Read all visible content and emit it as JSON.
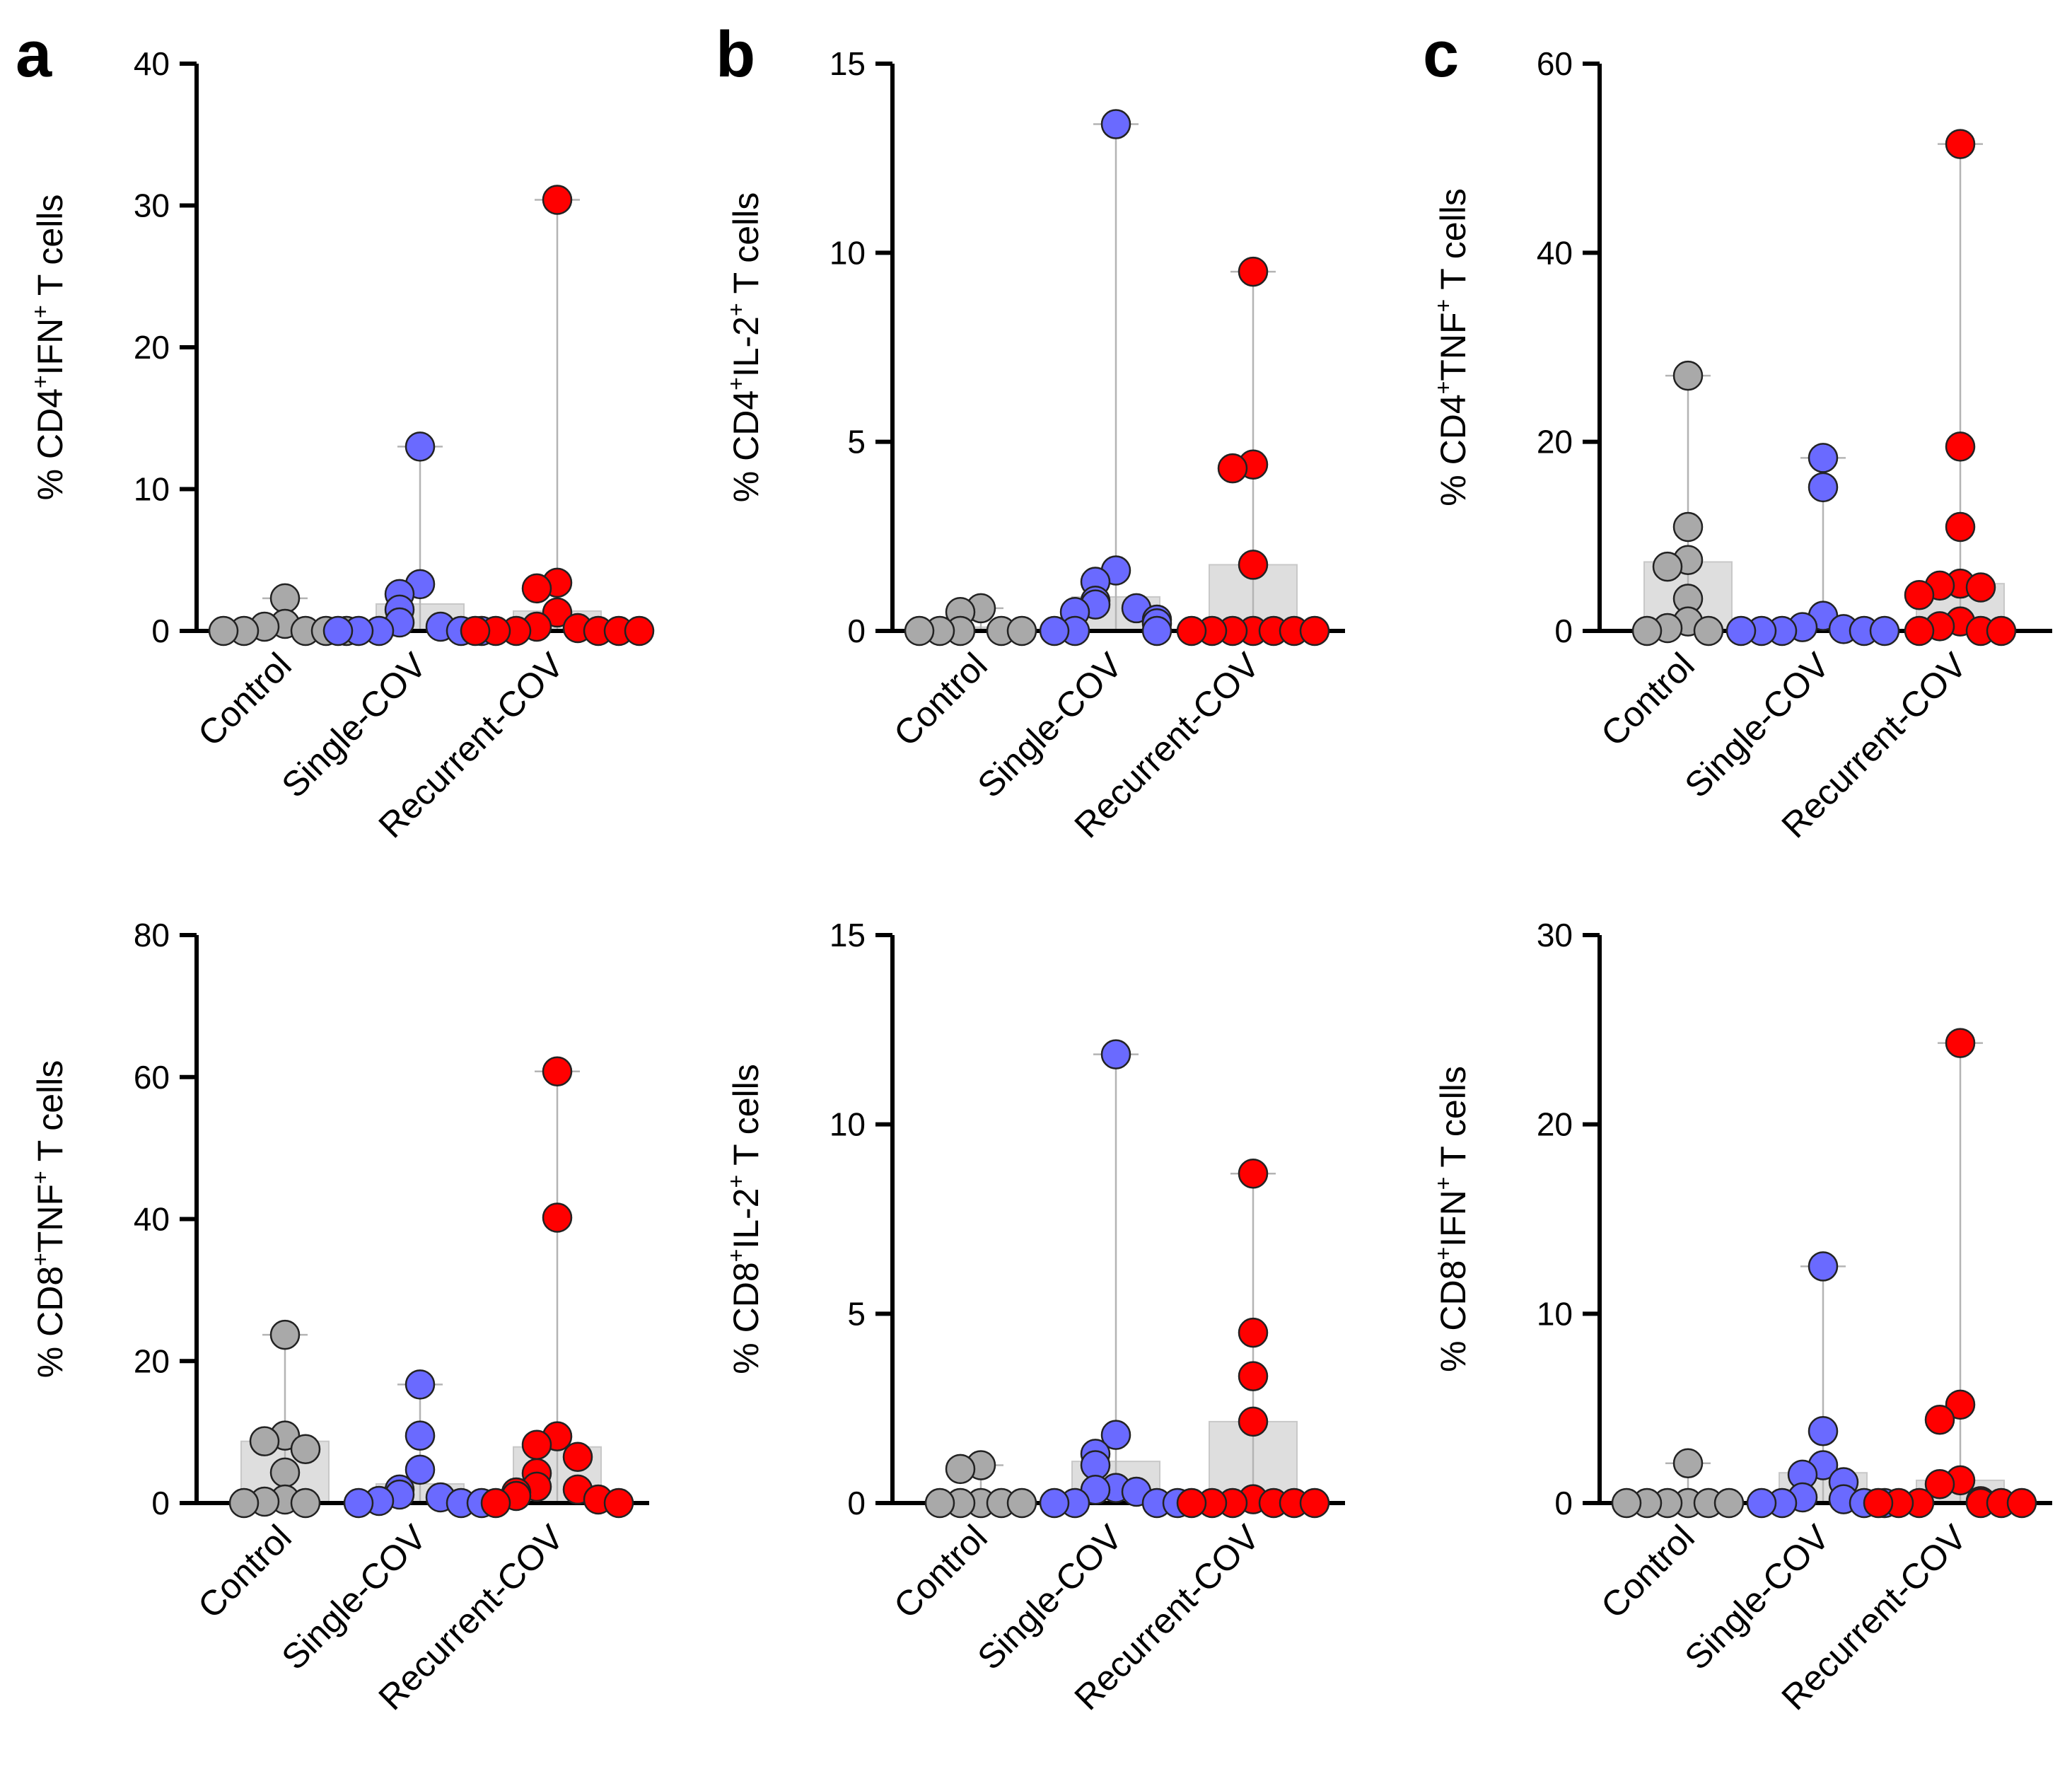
{
  "colors": {
    "control": "#a9a9a9",
    "single": "#6a6aff",
    "recurrent": "#ff0000",
    "bar_fill": "#dedede",
    "bar_stroke": "#c8c8c8",
    "whisker": "#b4b4b4",
    "axis": "#000000"
  },
  "chart_data": [
    {
      "type": "bar",
      "panel_letter": "a",
      "ylabel_parts": [
        "% CD4",
        "+",
        "IFN",
        "+",
        " T cells"
      ],
      "categories": [
        "Control",
        "Single-COV",
        "Recurrent-COV"
      ],
      "ylim": [
        0,
        40
      ],
      "yticks": [
        0,
        10,
        20,
        30,
        40
      ],
      "bar_values": [
        0.3,
        1.9,
        1.4
      ],
      "ranges": [
        [
          0,
          2.3
        ],
        [
          0,
          13.0
        ],
        [
          0,
          30.4
        ]
      ],
      "points": [
        [
          2.3,
          0.5,
          0.3,
          0,
          0,
          0,
          0,
          0
        ],
        [
          13.0,
          3.3,
          2.6,
          1.5,
          0.6,
          0.3,
          0,
          0,
          0,
          0,
          0
        ],
        [
          30.4,
          3.4,
          3.0,
          1.3,
          0.3,
          0.2,
          0,
          0,
          0,
          0,
          0,
          0
        ]
      ]
    },
    {
      "type": "bar",
      "panel_letter": "b",
      "ylabel_parts": [
        "% CD4",
        "+",
        "IL-2",
        "+",
        " T cells"
      ],
      "categories": [
        "Control",
        "Single-COV",
        "Recurrent-COV"
      ],
      "ylim": [
        0,
        15
      ],
      "yticks": [
        0,
        5,
        10,
        15
      ],
      "bar_values": [
        0.1,
        0.9,
        1.75
      ],
      "ranges": [
        [
          0,
          0.6
        ],
        [
          0,
          13.4
        ],
        [
          0,
          9.5
        ]
      ],
      "points": [
        [
          0.6,
          0.5,
          0,
          0,
          0,
          0,
          0
        ],
        [
          13.4,
          1.6,
          1.3,
          0.8,
          0.7,
          0.6,
          0.5,
          0.3,
          0.2,
          0,
          0,
          0
        ],
        [
          9.5,
          4.4,
          4.3,
          1.75,
          0,
          0,
          0,
          0,
          0,
          0,
          0
        ]
      ]
    },
    {
      "type": "bar",
      "panel_letter": "c",
      "ylabel_parts": [
        "% CD4",
        "+",
        "TNF",
        "+",
        " T cells"
      ],
      "categories": [
        "Control",
        "Single-COV",
        "Recurrent-COV"
      ],
      "ylim": [
        0,
        60
      ],
      "yticks": [
        0,
        20,
        40,
        60
      ],
      "bar_values": [
        7.3,
        0.2,
        5.0
      ],
      "ranges": [
        [
          0,
          27.0
        ],
        [
          0,
          18.3
        ],
        [
          0,
          51.5
        ]
      ],
      "points": [
        [
          27.0,
          11.0,
          7.5,
          6.8,
          3.4,
          1.0,
          0.3,
          0,
          0
        ],
        [
          18.3,
          15.2,
          1.6,
          0.4,
          0.2,
          0,
          0,
          0,
          0,
          0
        ],
        [
          51.5,
          19.5,
          11.0,
          5.0,
          4.8,
          4.6,
          3.8,
          1.0,
          0.5,
          0,
          0,
          0
        ]
      ]
    },
    {
      "type": "bar",
      "panel_letter": "",
      "ylabel_parts": [
        "% CD8",
        "+",
        "TNF",
        "+",
        " T cells"
      ],
      "categories": [
        "Control",
        "Single-COV",
        "Recurrent-COV"
      ],
      "ylim": [
        0,
        80
      ],
      "yticks": [
        0,
        20,
        40,
        60,
        80
      ],
      "bar_values": [
        8.7,
        2.7,
        7.9
      ],
      "ranges": [
        [
          0,
          23.7
        ],
        [
          0,
          16.7
        ],
        [
          0,
          60.8
        ]
      ],
      "points": [
        [
          23.7,
          9.5,
          8.7,
          7.6,
          4.3,
          0.5,
          0.2,
          0,
          0
        ],
        [
          16.7,
          9.5,
          4.7,
          1.9,
          1.2,
          0.8,
          0.3,
          0,
          0,
          0
        ],
        [
          60.8,
          40.2,
          9.4,
          8.2,
          6.5,
          4.2,
          2.3,
          1.9,
          1.5,
          1.0,
          0.5,
          0,
          0
        ]
      ]
    },
    {
      "type": "bar",
      "panel_letter": "",
      "ylabel_parts": [
        "% CD8",
        "+",
        "IL-2",
        "+",
        " T cells"
      ],
      "categories": [
        "Control",
        "Single-COV",
        "Recurrent-COV"
      ],
      "ylim": [
        0,
        15
      ],
      "yticks": [
        0,
        5,
        10,
        15
      ],
      "bar_values": [
        0.05,
        1.1,
        2.15
      ],
      "ranges": [
        [
          0,
          1.0
        ],
        [
          0,
          11.85
        ],
        [
          0,
          8.7
        ]
      ],
      "points": [
        [
          1.0,
          0.9,
          0,
          0,
          0,
          0,
          0
        ],
        [
          11.85,
          1.8,
          1.3,
          1.0,
          0.4,
          0.35,
          0.3,
          0,
          0,
          0,
          0
        ],
        [
          8.7,
          4.5,
          3.35,
          2.15,
          0.1,
          0,
          0,
          0,
          0,
          0,
          0
        ]
      ]
    },
    {
      "type": "bar",
      "panel_letter": "",
      "ylabel_parts": [
        "% CD8",
        "+",
        "IFN",
        "+",
        " T cells"
      ],
      "categories": [
        "Control",
        "Single-COV",
        "Recurrent-COV"
      ],
      "ylim": [
        0,
        30
      ],
      "yticks": [
        0,
        10,
        20,
        30
      ],
      "bar_values": [
        0.1,
        1.6,
        1.2
      ],
      "ranges": [
        [
          0,
          2.1
        ],
        [
          0,
          12.5
        ],
        [
          0,
          24.3
        ]
      ],
      "points": [
        [
          2.1,
          0,
          0,
          0,
          0,
          0,
          0
        ],
        [
          12.5,
          3.8,
          2.0,
          1.5,
          1.1,
          0.3,
          0.2,
          0,
          0,
          0,
          0
        ],
        [
          24.3,
          5.2,
          4.4,
          1.2,
          1.0,
          0.1,
          0,
          0,
          0,
          0,
          0,
          0
        ]
      ]
    }
  ]
}
